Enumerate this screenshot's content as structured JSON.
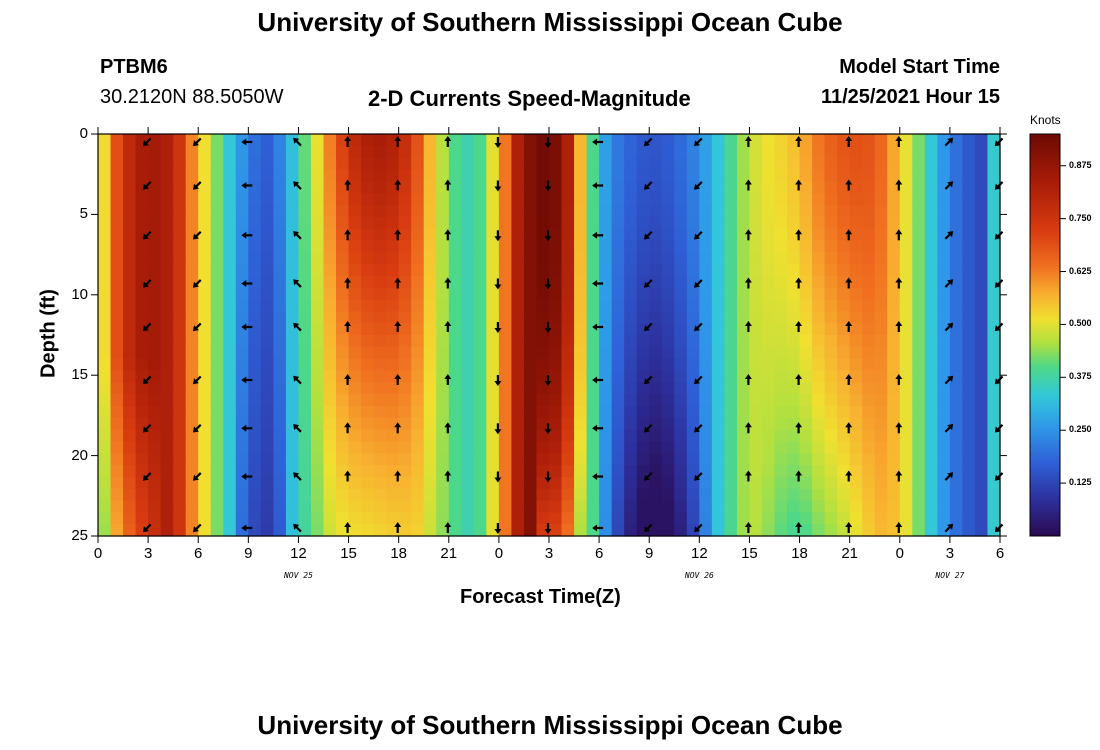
{
  "header": {
    "title": "University of Southern Mississippi Ocean Cube",
    "station": "PTBM6",
    "coords": "30.2120N  88.5050W",
    "subtitle": "2-D Currents Speed-Magnitude",
    "model_label": "Model Start Time",
    "model_time": "11/25/2021 Hour 15",
    "footer_title": "University of Southern Mississippi Ocean Cube"
  },
  "chart_data": {
    "type": "heatmap",
    "title": "2-D Currents Speed-Magnitude",
    "xlabel": "Forecast Time(Z)",
    "ylabel": "Depth (ft)",
    "x_tick_labels": [
      "0",
      "3",
      "6",
      "9",
      "12",
      "15",
      "18",
      "21",
      "0",
      "3",
      "6",
      "9",
      "12",
      "15",
      "18",
      "21",
      "0",
      "3",
      "6"
    ],
    "x_range_hours": [
      0,
      54
    ],
    "y_ticks": [
      0,
      5,
      10,
      15,
      20,
      25
    ],
    "ylim": [
      0,
      25
    ],
    "date_labels": [
      {
        "text": "NOV 25",
        "hour": 12
      },
      {
        "text": "NOV 26",
        "hour": 36
      },
      {
        "text": "NOV 27",
        "hour": 51
      }
    ],
    "colorbar": {
      "label": "Knots",
      "ticks": [
        "0.875",
        "0.750",
        "0.625",
        "0.500",
        "0.375",
        "0.250",
        "0.125"
      ],
      "tick_values": [
        0.875,
        0.75,
        0.625,
        0.5,
        0.375,
        0.25,
        0.125
      ],
      "range": [
        0,
        0.95
      ],
      "colors": [
        "#2a0a50",
        "#2d2f9c",
        "#2f5fd6",
        "#2f98e8",
        "#33c8d8",
        "#4dd888",
        "#b0e040",
        "#f0e030",
        "#f8b030",
        "#f07020",
        "#d83b10",
        "#a81c08",
        "#6d0a04"
      ]
    },
    "speed_profile": {
      "hours": [
        0,
        1,
        2,
        3,
        4,
        5,
        6,
        7,
        8,
        9,
        10,
        11,
        12,
        13,
        14,
        15,
        16,
        17,
        18,
        19,
        20,
        21,
        22,
        23,
        24,
        25,
        26,
        27,
        28,
        29,
        30,
        31,
        32,
        33,
        34,
        35,
        36,
        37,
        38,
        39,
        40,
        41,
        42,
        43,
        44,
        45,
        46,
        47,
        48,
        49,
        50,
        51,
        52,
        53,
        54
      ],
      "surface_knots": [
        0.45,
        0.75,
        0.85,
        0.88,
        0.87,
        0.8,
        0.62,
        0.45,
        0.3,
        0.2,
        0.15,
        0.22,
        0.35,
        0.52,
        0.72,
        0.82,
        0.86,
        0.87,
        0.85,
        0.78,
        0.6,
        0.42,
        0.35,
        0.4,
        0.62,
        0.85,
        0.93,
        0.95,
        0.9,
        0.58,
        0.28,
        0.2,
        0.16,
        0.14,
        0.15,
        0.18,
        0.22,
        0.3,
        0.4,
        0.5,
        0.55,
        0.58,
        0.62,
        0.7,
        0.74,
        0.76,
        0.76,
        0.72,
        0.6,
        0.45,
        0.3,
        0.2,
        0.15,
        0.12,
        0.45
      ]
    },
    "vectors": {
      "hours": [
        3,
        6,
        9,
        12,
        15,
        18,
        21,
        24,
        27,
        30,
        33,
        36,
        39,
        42,
        45,
        48,
        51,
        54
      ],
      "depths": [
        0.5,
        3.2,
        6.3,
        9.3,
        12.0,
        15.3,
        18.3,
        21.3,
        24.5
      ],
      "direction_by_hour": [
        "SW",
        "SW",
        "W",
        "NW",
        "N",
        "N",
        "N",
        "S",
        "S",
        "W",
        "SW",
        "SW",
        "N",
        "N",
        "N",
        "N",
        "NE",
        "SW"
      ]
    }
  }
}
